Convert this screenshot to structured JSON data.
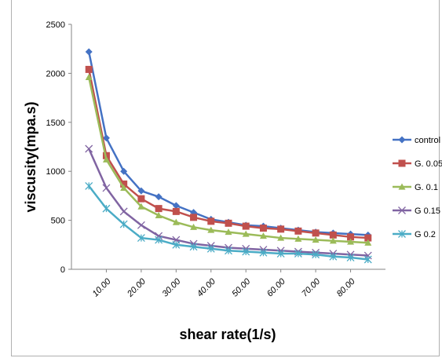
{
  "chart_data": {
    "type": "line",
    "title": "",
    "xlabel": "shear rate(1/s)",
    "ylabel": "viscusity(mpa.s)",
    "ylim": [
      0,
      2500
    ],
    "yticks": [
      0,
      500,
      1000,
      1500,
      2000,
      2500
    ],
    "ytick_labels": [
      "0",
      "500",
      "1000",
      "1500",
      "2000",
      "2500"
    ],
    "xlim": [
      0,
      90
    ],
    "xticks": [
      10,
      20,
      30,
      40,
      50,
      60,
      70,
      80
    ],
    "xtick_labels": [
      "10.00",
      "20.00",
      "30.00",
      "40.00",
      "50.00",
      "60.00",
      "70.00",
      "80.00"
    ],
    "grid": false,
    "legend_position": "right",
    "x": [
      5,
      10,
      15,
      20,
      25,
      30,
      35,
      40,
      45,
      50,
      55,
      60,
      65,
      70,
      75,
      80,
      85
    ],
    "series": [
      {
        "name": "control",
        "color": "#4472c4",
        "marker": "diamond",
        "values": [
          2220,
          1340,
          1000,
          800,
          740,
          650,
          580,
          510,
          480,
          450,
          440,
          420,
          400,
          380,
          370,
          360,
          350
        ]
      },
      {
        "name": "G. 0.05",
        "color": "#c0504d",
        "marker": "square",
        "values": [
          2040,
          1160,
          870,
          720,
          620,
          590,
          530,
          490,
          470,
          440,
          420,
          410,
          390,
          370,
          350,
          330,
          320
        ]
      },
      {
        "name": "G. 0.1",
        "color": "#9bbb59",
        "marker": "triangle",
        "values": [
          1960,
          1120,
          830,
          640,
          550,
          480,
          430,
          400,
          380,
          360,
          340,
          320,
          310,
          300,
          290,
          280,
          270
        ]
      },
      {
        "name": "G 0.15",
        "color": "#8064a2",
        "marker": "x",
        "values": [
          1230,
          830,
          590,
          450,
          340,
          300,
          260,
          240,
          220,
          210,
          200,
          190,
          180,
          170,
          160,
          150,
          140
        ]
      },
      {
        "name": "G 0.2",
        "color": "#4bacc6",
        "marker": "star",
        "values": [
          850,
          620,
          460,
          320,
          300,
          250,
          230,
          210,
          190,
          180,
          170,
          160,
          160,
          150,
          130,
          120,
          100
        ]
      }
    ]
  }
}
